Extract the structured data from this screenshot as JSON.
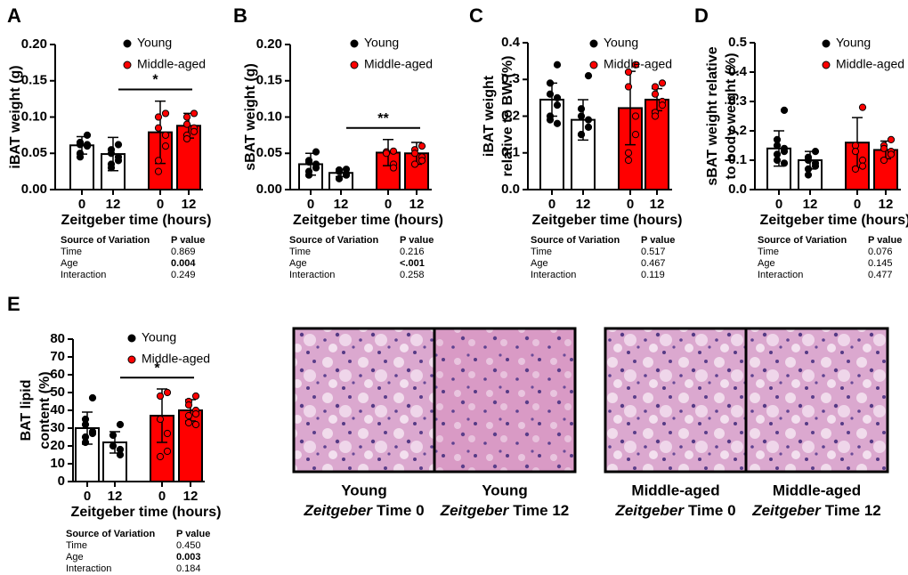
{
  "chart_data": [
    {
      "type": "bar",
      "panel": "A",
      "ylabel": [
        "iBAT weight (g)"
      ],
      "xlabel": "Zeitgeber time (hours)",
      "categories": [
        "0",
        "12",
        "0",
        "12"
      ],
      "values": [
        0.061,
        0.049,
        0.079,
        0.088
      ],
      "errors": [
        0.012,
        0.023,
        0.043,
        0.017
      ],
      "bar_colors": [
        "#ffffff",
        "#ffffff",
        "#ff0000",
        "#ff0000"
      ],
      "points": [
        [
          0.075,
          0.065,
          0.062,
          0.062,
          0.06,
          0.05,
          0.045
        ],
        [
          0.062,
          0.055,
          0.05,
          0.045,
          0.04,
          0.035,
          0.03
        ],
        [
          0.105,
          0.1,
          0.085,
          0.075,
          0.06,
          0.04,
          0.025
        ],
        [
          0.105,
          0.1,
          0.09,
          0.085,
          0.08,
          0.075,
          0.07
        ]
      ],
      "legend": [
        {
          "name": "Young",
          "color": "#000000"
        },
        {
          "name": "Middle-aged",
          "color": "#ff0000"
        }
      ],
      "significance": "*",
      "ylim": [
        0,
        0.2
      ],
      "yticks": [
        {
          "value": 0,
          "label": "0.00"
        },
        0.05,
        {
          "value": 0.1,
          "label": "0.10"
        },
        0.15,
        {
          "value": 0.2,
          "label": "0.20"
        }
      ],
      "stats": {
        "header": [
          "Source of Variation",
          "P value"
        ],
        "rows": [
          {
            "source": "Time",
            "p": "0.869",
            "bold": false
          },
          {
            "source": "Age",
            "p": "0.004",
            "bold": true
          },
          {
            "source": "Interaction",
            "p": "0.249",
            "bold": false
          }
        ]
      }
    },
    {
      "type": "bar",
      "panel": "B",
      "ylabel": [
        "sBAT weight (g)"
      ],
      "xlabel": "Zeitgeber time (hours)",
      "categories": [
        "0",
        "12",
        "0",
        "12"
      ],
      "values": [
        0.035,
        0.023,
        0.051,
        0.05
      ],
      "errors": [
        0.015,
        0.005,
        0.018,
        0.015
      ],
      "bar_colors": [
        "#ffffff",
        "#ffffff",
        "#ff0000",
        "#ff0000"
      ],
      "points": [
        [
          0.052,
          0.04,
          0.038,
          0.035,
          0.03,
          0.025,
          0.02
        ],
        [
          0.028,
          0.027,
          0.025,
          0.022,
          0.02,
          0.015
        ],
        [
          0.053,
          0.052,
          0.05,
          0.035,
          0.03
        ],
        [
          0.06,
          0.055,
          0.05,
          0.045,
          0.04,
          0.035
        ]
      ],
      "legend": [
        {
          "name": "Young",
          "color": "#000000"
        },
        {
          "name": "Middle-aged",
          "color": "#ff0000"
        }
      ],
      "significance": "**",
      "ylim": [
        0,
        0.2
      ],
      "yticks": [
        {
          "value": 0,
          "label": "0.00"
        },
        0.05,
        {
          "value": 0.1,
          "label": "0.10"
        },
        0.15,
        {
          "value": 0.2,
          "label": "0.20"
        }
      ],
      "stats": {
        "header": [
          "Source of Variation",
          "P value"
        ],
        "rows": [
          {
            "source": "Time",
            "p": "0.216",
            "bold": false
          },
          {
            "source": "Age",
            "p": "<.001",
            "bold": true
          },
          {
            "source": "Interaction",
            "p": "0.258",
            "bold": false
          }
        ]
      }
    },
    {
      "type": "bar",
      "panel": "C",
      "ylabel": [
        "iBAT weight",
        "relative to BW (%)"
      ],
      "xlabel": "Zeitgeber time (hours)",
      "categories": [
        "0",
        "12",
        "0",
        "12"
      ],
      "values": [
        0.245,
        0.19,
        0.222,
        0.245
      ],
      "errors": [
        0.045,
        0.055,
        0.1,
        0.03
      ],
      "bar_colors": [
        "#ffffff",
        "#ffffff",
        "#ff0000",
        "#ff0000"
      ],
      "points": [
        [
          0.34,
          0.29,
          0.26,
          0.25,
          0.23,
          0.2,
          0.19,
          0.18
        ],
        [
          0.31,
          0.22,
          0.2,
          0.19,
          0.17,
          0.15,
          0.15
        ],
        [
          0.34,
          0.32,
          0.28,
          0.2,
          0.15,
          0.1,
          0.08
        ],
        [
          0.29,
          0.28,
          0.26,
          0.24,
          0.23,
          0.21,
          0.2
        ]
      ],
      "legend": [
        {
          "name": "Young",
          "color": "#000000"
        },
        {
          "name": "Middle-aged",
          "color": "#ff0000"
        }
      ],
      "ylim": [
        0,
        0.4
      ],
      "yticks": [
        {
          "value": 0,
          "label": "0.0"
        },
        0.1,
        0.2,
        0.3,
        0.4
      ],
      "stats": {
        "header": [
          "Source of Variation",
          "P value"
        ],
        "rows": [
          {
            "source": "Time",
            "p": "0.517",
            "bold": false
          },
          {
            "source": "Age",
            "p": "0.467",
            "bold": false
          },
          {
            "source": "Interaction",
            "p": "0.119",
            "bold": false
          }
        ]
      }
    },
    {
      "type": "bar",
      "panel": "D",
      "ylabel": [
        "sBAT weight relative",
        "to body weight (%)"
      ],
      "xlabel": "Zeitgeber time (hours)",
      "categories": [
        "0",
        "12",
        "0",
        "12"
      ],
      "values": [
        0.14,
        0.1,
        0.16,
        0.135
      ],
      "errors": [
        0.06,
        0.03,
        0.085,
        0.03
      ],
      "bar_colors": [
        "#ffffff",
        "#ffffff",
        "#ff0000",
        "#ff0000"
      ],
      "points": [
        [
          0.27,
          0.17,
          0.15,
          0.14,
          0.13,
          0.12,
          0.1,
          0.09
        ],
        [
          0.13,
          0.11,
          0.1,
          0.09,
          0.08,
          0.07,
          0.05
        ],
        [
          0.28,
          0.15,
          0.13,
          0.1,
          0.08,
          0.07
        ],
        [
          0.17,
          0.15,
          0.14,
          0.13,
          0.12,
          0.1
        ]
      ],
      "legend": [
        {
          "name": "Young",
          "color": "#000000"
        },
        {
          "name": "Middle-aged",
          "color": "#ff0000"
        }
      ],
      "ylim": [
        0,
        0.5
      ],
      "yticks": [
        {
          "value": 0,
          "label": "0.0"
        },
        0.1,
        0.2,
        0.3,
        0.4,
        0.5
      ],
      "stats": {
        "header": [
          "Source of Variation",
          "P value"
        ],
        "rows": [
          {
            "source": "Time",
            "p": "0.076",
            "bold": false
          },
          {
            "source": "Age",
            "p": "0.145",
            "bold": false
          },
          {
            "source": "Interaction",
            "p": "0.477",
            "bold": false
          }
        ]
      }
    },
    {
      "type": "bar",
      "panel": "E",
      "ylabel": [
        "BAT lipid",
        "content (%)"
      ],
      "xlabel": "Zeitgeber time (hours)",
      "categories": [
        "0",
        "12",
        "0",
        "12"
      ],
      "values": [
        30,
        22,
        37,
        40
      ],
      "errors": [
        9,
        6,
        15,
        6
      ],
      "bar_colors": [
        "#ffffff",
        "#ffffff",
        "#ff0000",
        "#ff0000"
      ],
      "points": [
        [
          47,
          35,
          32,
          28,
          27,
          25,
          22
        ],
        [
          32,
          26,
          20,
          18,
          15
        ],
        [
          50,
          48,
          35,
          27,
          17,
          14
        ],
        [
          48,
          45,
          43,
          40,
          38,
          37,
          33,
          32
        ]
      ],
      "legend": [
        {
          "name": "Young",
          "color": "#000000"
        },
        {
          "name": "Middle-aged",
          "color": "#ff0000"
        }
      ],
      "significance": "*",
      "ylim": [
        0,
        80
      ],
      "yticks": [
        0,
        10,
        20,
        30,
        40,
        50,
        60,
        70,
        80
      ],
      "stats": {
        "header": [
          "Source of Variation",
          "P value"
        ],
        "rows": [
          {
            "source": "Time",
            "p": "0.450",
            "bold": false
          },
          {
            "source": "Age",
            "p": "0.003",
            "bold": true
          },
          {
            "source": "Interaction",
            "p": "0.184",
            "bold": false
          }
        ]
      }
    }
  ],
  "images": [
    {
      "group": "Young",
      "italic": "Zeitgeber",
      "rest": "Time 0"
    },
    {
      "group": "Young",
      "italic": "Zeitgeber",
      "rest": "Time 12"
    },
    {
      "group": "Middle-aged",
      "italic": "Zeitgeber",
      "rest": "Time 0"
    },
    {
      "group": "Middle-aged",
      "italic": "Zeitgeber",
      "rest": "Time 12"
    }
  ]
}
